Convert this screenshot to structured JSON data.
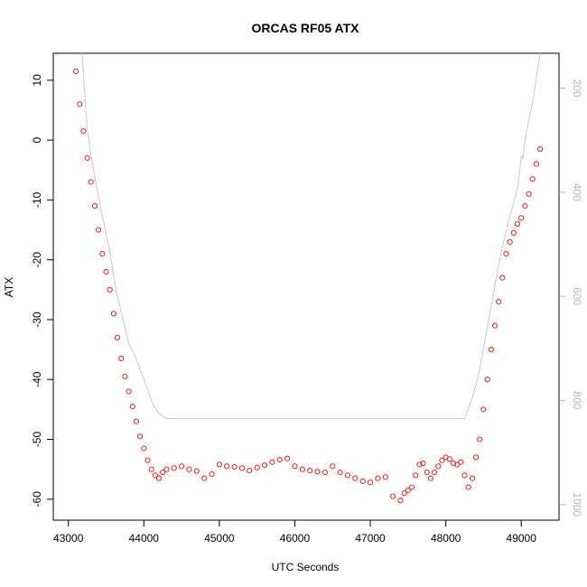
{
  "chart_data": {
    "type": "scatter",
    "title": "ORCAS RF05 ATX",
    "xlabel": "UTC Seconds",
    "ylabel": "ATX",
    "xlim": [
      42800,
      49500
    ],
    "ylim": [
      -63.5,
      14.5
    ],
    "x_ticks": [
      43000,
      44000,
      45000,
      46000,
      47000,
      48000,
      49000
    ],
    "y_ticks": [
      10,
      0,
      -10,
      -20,
      -30,
      -40,
      -50,
      -60
    ],
    "right_axis": {
      "reversed": true,
      "lim": [
        133,
        1030
      ],
      "ticks": [
        200,
        400,
        600,
        800,
        1000
      ],
      "color": "#b8b8b8"
    },
    "colors": {
      "points": "#ff0000",
      "line": "#c8c8c8",
      "axes": "#000000"
    },
    "series": [
      {
        "kind": "points",
        "x": [
          43100,
          43150,
          43200,
          43250,
          43300,
          43350,
          43400,
          43450,
          43500,
          43550,
          43600,
          43650,
          43700,
          43750,
          43800,
          43850,
          43900,
          43950,
          44000,
          44050,
          44100,
          44150,
          44200,
          44250,
          44300,
          44400,
          44500,
          44600,
          44700,
          44800,
          44900,
          45000,
          45100,
          45200,
          45300,
          45400,
          45500,
          45600,
          45700,
          45800,
          45900,
          46000,
          46100,
          46200,
          46300,
          46400,
          46500,
          46600,
          46700,
          46800,
          46900,
          47000,
          47100,
          47200,
          47300,
          47400,
          47450,
          47500,
          47550,
          47600,
          47650,
          47700,
          47750,
          47800,
          47850,
          47900,
          47950,
          48000,
          48050,
          48100,
          48150,
          48200,
          48250,
          48300,
          48350,
          48400,
          48450,
          48500,
          48550,
          48600,
          48650,
          48700,
          48750,
          48800,
          48850,
          48900,
          48950,
          49000,
          49050,
          49100,
          49150,
          49200,
          49250
        ],
        "y": [
          11.5,
          6,
          1.5,
          -3,
          -7,
          -11,
          -15,
          -19,
          -22,
          -25,
          -29,
          -33,
          -36.5,
          -39.5,
          -42,
          -44.5,
          -47,
          -49.5,
          -51.5,
          -53.5,
          -55,
          -56,
          -56.5,
          -55.5,
          -55,
          -54.8,
          -54.5,
          -55,
          -55.3,
          -56.5,
          -55.8,
          -54.2,
          -54.5,
          -54.6,
          -54.8,
          -55.2,
          -54.7,
          -54.3,
          -53.8,
          -53.4,
          -53.2,
          -54.5,
          -55,
          -55.2,
          -55.4,
          -55.5,
          -54.5,
          -55.5,
          -56,
          -56.5,
          -57,
          -57.2,
          -56.5,
          -56.3,
          -59.5,
          -60.2,
          -59,
          -58.5,
          -58,
          -56,
          -54.2,
          -54,
          -55.5,
          -56.5,
          -55.5,
          -54.5,
          -53.5,
          -53,
          -53.3,
          -54,
          -54.2,
          -53.8,
          -56,
          -58,
          -56.5,
          -53,
          -50,
          -45,
          -40,
          -35,
          -31,
          -27,
          -23,
          -19,
          -17,
          -15.5,
          -14,
          -13,
          -11,
          -9,
          -6.5,
          -4,
          -1.5
        ]
      },
      {
        "kind": "line",
        "axis": "right",
        "x": [
          43180,
          43250,
          43300,
          43350,
          43400,
          43450,
          43500,
          43550,
          43600,
          43650,
          43700,
          43750,
          43800,
          43850,
          43900,
          43950,
          44000,
          44050,
          44100,
          44150,
          44200,
          44250,
          44300,
          44350,
          45000,
          46000,
          47000,
          48000,
          48250,
          48300,
          48350,
          48400,
          48450,
          48500,
          48550,
          48600,
          48650,
          48700,
          48750,
          48800,
          48850,
          48900,
          48950,
          48980,
          49000,
          49020,
          49050,
          49100,
          49150,
          49200,
          49250
        ],
        "y": [
          133,
          280,
          330,
          370,
          410,
          445,
          480,
          515,
          560,
          600,
          630,
          660,
          690,
          705,
          720,
          740,
          760,
          780,
          800,
          815,
          825,
          830,
          835,
          835,
          835,
          835,
          835,
          835,
          835,
          815,
          795,
          770,
          740,
          700,
          660,
          620,
          580,
          540,
          505,
          475,
          445,
          420,
          390,
          360,
          330,
          335,
          300,
          260,
          230,
          180,
          133
        ]
      }
    ]
  }
}
